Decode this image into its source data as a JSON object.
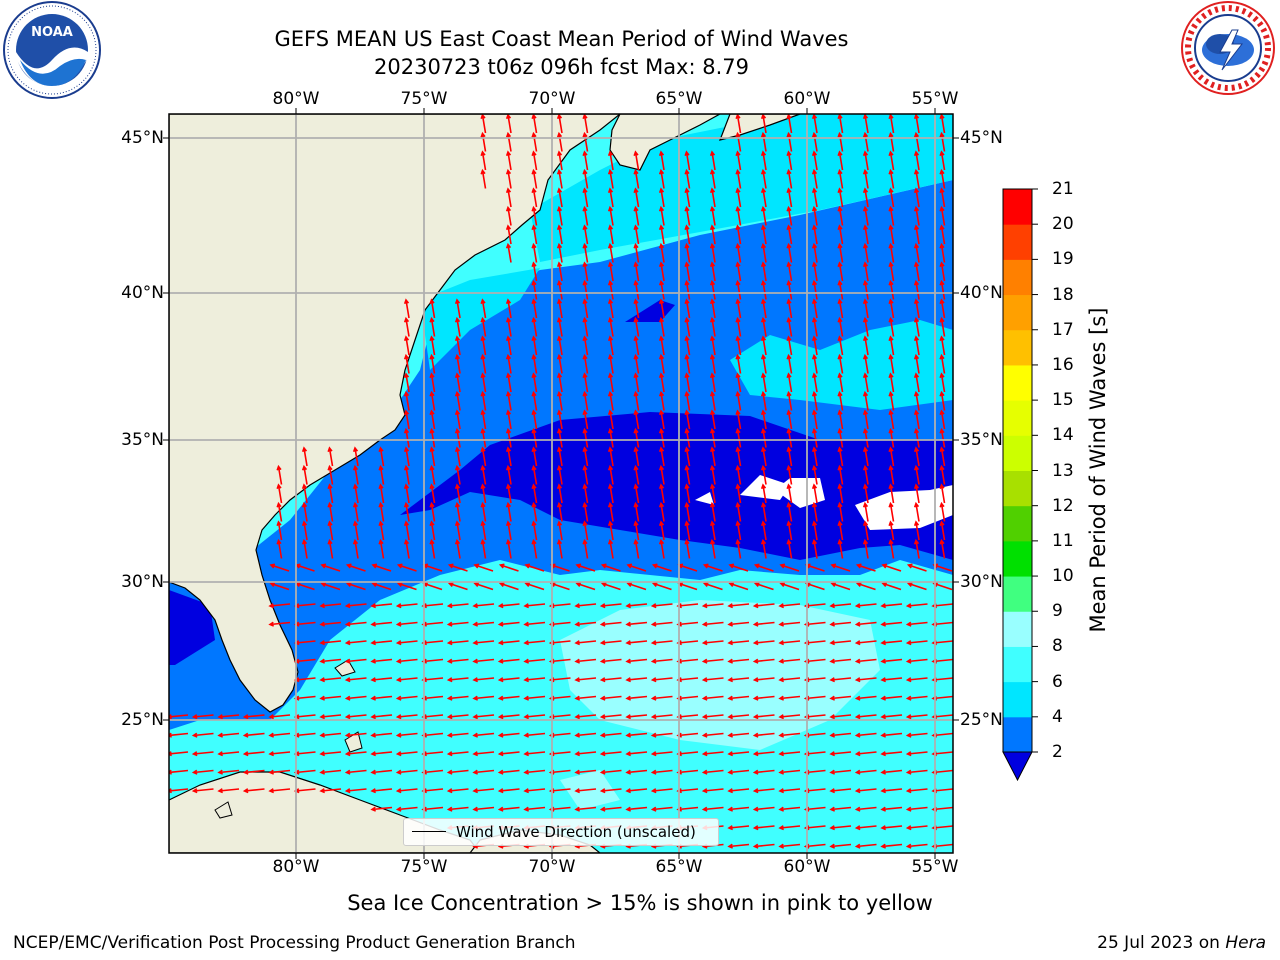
{
  "title": {
    "line1": "GEFS MEAN US East Coast Mean Period of Wind Waves",
    "line2": "20230723 t06z 096h fcst   Max: 8.79"
  },
  "map": {
    "lon_labels": [
      "80°W",
      "75°W",
      "70°W",
      "65°W",
      "60°W",
      "55°W"
    ],
    "lat_labels": [
      "45°N",
      "40°N",
      "35°N",
      "30°N",
      "25°N"
    ],
    "legend_label": "Wind Wave Direction (unscaled)",
    "colors": {
      "land": "#eeeedc",
      "coast": "#000000",
      "grid": "#b0b0b0",
      "arrow": "#ff0000"
    }
  },
  "colorbar": {
    "title": "Mean Period of Wind Waves [s]",
    "labels": [
      "2",
      "4",
      "6",
      "8",
      "9",
      "10",
      "11",
      "12",
      "13",
      "14",
      "15",
      "16",
      "17",
      "18",
      "19",
      "20",
      "21"
    ],
    "colors": [
      "#0000e0",
      "#0077ff",
      "#00e6ff",
      "#40ffff",
      "#99ffff",
      "#40ff80",
      "#00e000",
      "#50d000",
      "#a8e000",
      "#ccff00",
      "#e6ff00",
      "#ffff00",
      "#ffc000",
      "#ffa000",
      "#ff8000",
      "#ff4000",
      "#ff0000"
    ]
  },
  "footer": {
    "note": "Sea Ice Concentration > 15% is shown in pink to yellow",
    "left": "NCEP/EMC/Verification Post Processing Product Generation Branch",
    "right_prefix": "25 Jul 2023 on ",
    "right_machine": "Hera"
  },
  "logos": {
    "noaa": "NOAA",
    "noaa_ring": "NATIONAL OCEANIC AND ATMOSPHERIC ADMINISTRATION · U.S. DEPARTMENT OF COMMERCE",
    "nws_ring": "NATIONAL WEATHER SERVICE"
  }
}
